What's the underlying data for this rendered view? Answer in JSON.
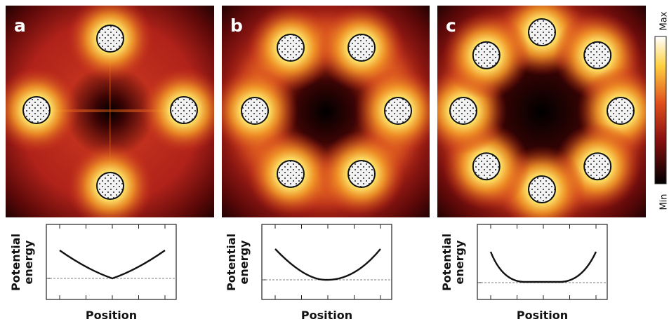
{
  "panels": [
    {
      "label": "a"
    },
    {
      "label": "b"
    },
    {
      "label": "c"
    }
  ],
  "colorbar": {
    "max": "Max",
    "min": "Min"
  },
  "energy_plot": {
    "x_label": "Position",
    "y_label_lines": [
      "Potential",
      "energy"
    ]
  }
}
